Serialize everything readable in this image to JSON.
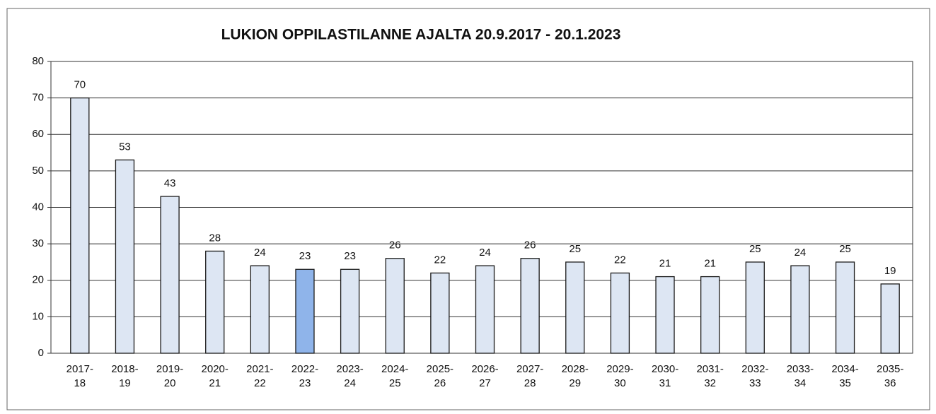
{
  "chart_data": {
    "type": "bar",
    "title": "LUKION OPPILASTILANNE AJALTA 20.9.2017 - 20.1.2023",
    "categories": [
      [
        "2017-",
        "18"
      ],
      [
        "2018-",
        "19"
      ],
      [
        "2019-",
        "20"
      ],
      [
        "2020-",
        "21"
      ],
      [
        "2021-",
        "22"
      ],
      [
        "2022-",
        "23"
      ],
      [
        "2023-",
        "24"
      ],
      [
        "2024-",
        "25"
      ],
      [
        "2025-",
        "26"
      ],
      [
        "2026-",
        "27"
      ],
      [
        "2027-",
        "28"
      ],
      [
        "2028-",
        "29"
      ],
      [
        "2029-",
        "30"
      ],
      [
        "2030-",
        "31"
      ],
      [
        "2031-",
        "32"
      ],
      [
        "2032-",
        "33"
      ],
      [
        "2033-",
        "34"
      ],
      [
        "2034-",
        "35"
      ],
      [
        "2035-",
        "36"
      ]
    ],
    "values": [
      70,
      53,
      43,
      28,
      24,
      23,
      23,
      26,
      22,
      24,
      26,
      25,
      22,
      21,
      21,
      25,
      24,
      25,
      19
    ],
    "colors": [
      "#dde6f3",
      "#dde6f3",
      "#dde6f3",
      "#dde6f3",
      "#dde6f3",
      "#8fb4ea",
      "#dde6f3",
      "#dde6f3",
      "#dde6f3",
      "#dde6f3",
      "#dde6f3",
      "#dde6f3",
      "#dde6f3",
      "#dde6f3",
      "#dde6f3",
      "#dde6f3",
      "#dde6f3",
      "#dde6f3",
      "#dde6f3"
    ],
    "ylim": [
      0,
      80
    ],
    "yticks": [
      0,
      10,
      20,
      30,
      40,
      50,
      60,
      70,
      80
    ],
    "grid": true
  }
}
